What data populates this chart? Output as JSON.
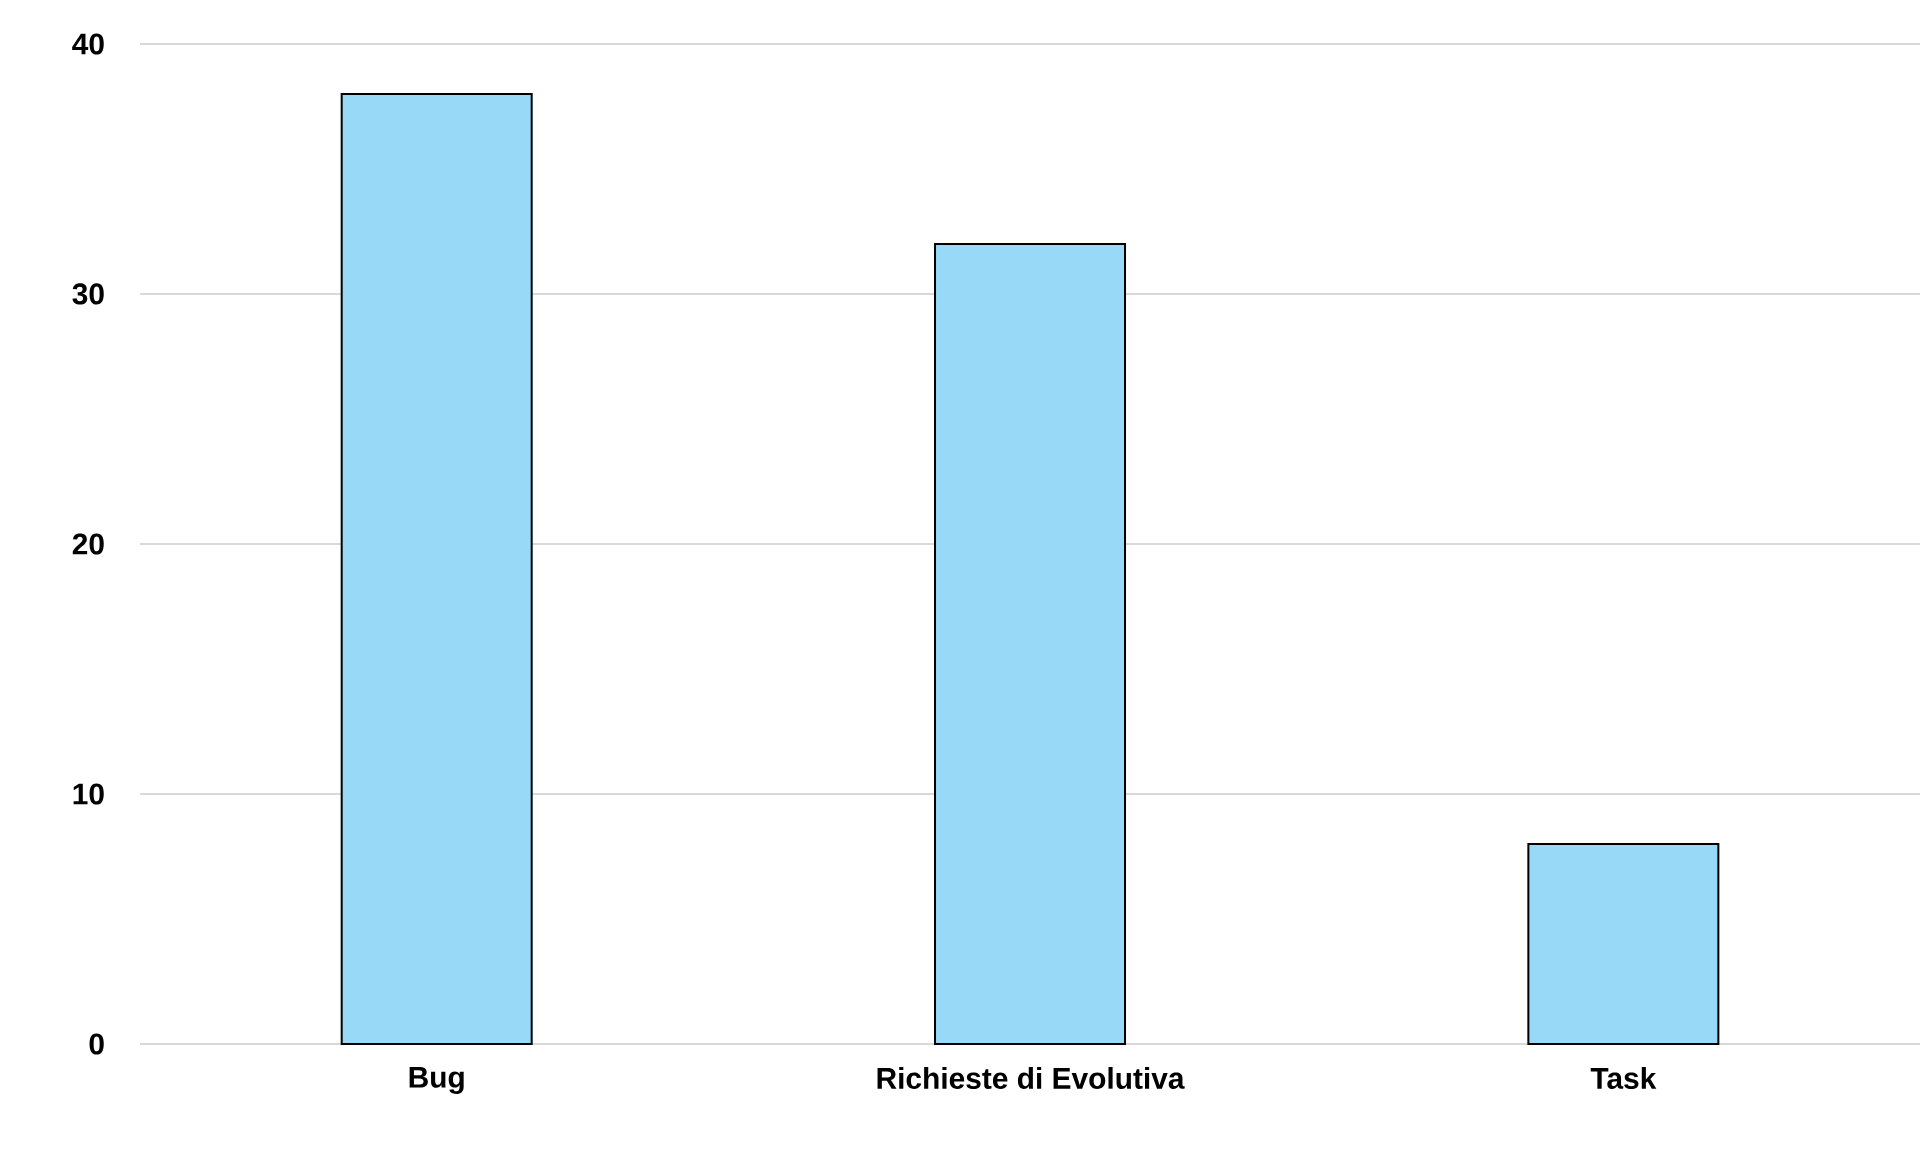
{
  "chart_data": {
    "type": "bar",
    "categories": [
      "Bug",
      "Richieste di Evolutiva",
      "Task"
    ],
    "values": [
      38,
      32,
      8
    ],
    "color": "#97d9f6",
    "ylim": [
      0,
      40
    ],
    "yticks": [
      0,
      10,
      20,
      30,
      40
    ],
    "grid": "y"
  }
}
